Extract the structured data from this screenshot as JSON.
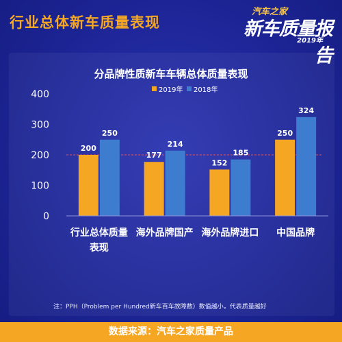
{
  "header": {
    "title": "行业总体新车质量表现"
  },
  "logo": {
    "top": "汽车之家",
    "main": "新车质量报告",
    "year": "2019年"
  },
  "colors": {
    "s2019": "#f5a623",
    "s2018": "#3e7ccf",
    "avg_line": "#e05252"
  },
  "chart_data": {
    "type": "bar",
    "title": "分品牌性质新车车辆总体质量表现",
    "categories": [
      "行业总体质量表现",
      "海外品牌国产",
      "海外品牌进口",
      "中国品牌"
    ],
    "series": [
      {
        "name": "2019年",
        "values": [
          200,
          177,
          152,
          250
        ]
      },
      {
        "name": "2018年",
        "values": [
          250,
          214,
          185,
          324
        ]
      }
    ],
    "ylim": [
      0,
      400
    ],
    "yticks": [
      0,
      100,
      200,
      300,
      400
    ],
    "reference_line": 200,
    "legend": "top-center",
    "grid": false
  },
  "note": "注：PPH（Problem per Hundred新车百车故障数）数值越小，代表质量越好",
  "footer": "数据来源：汽车之家质量产品"
}
